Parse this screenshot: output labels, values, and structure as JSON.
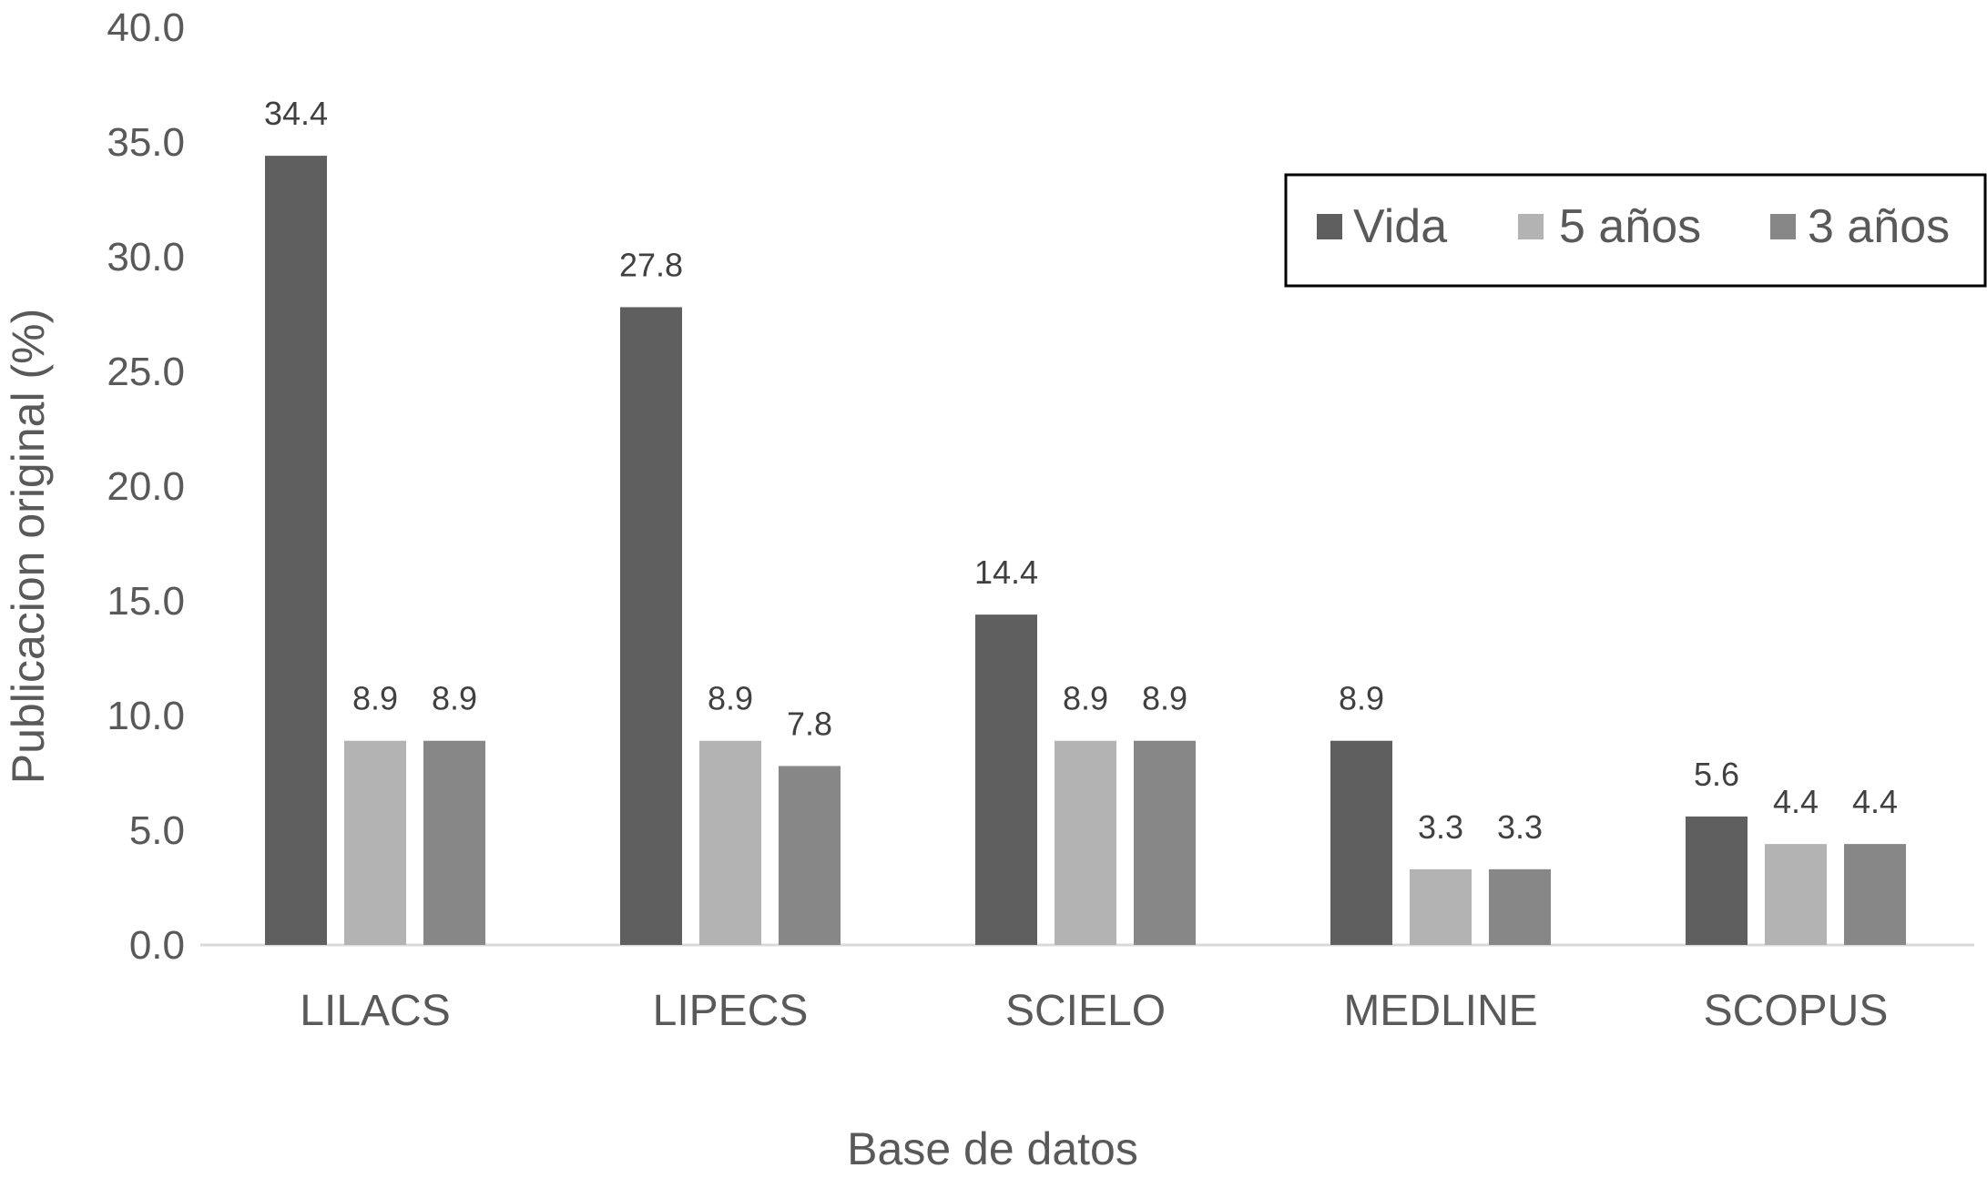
{
  "chart_data": {
    "type": "bar",
    "categories": [
      "LILACS",
      "LIPECS",
      "SCIELO",
      "MEDLINE",
      "SCOPUS"
    ],
    "series": [
      {
        "name": "Vida",
        "values": [
          34.4,
          27.8,
          14.4,
          8.9,
          5.6
        ],
        "color": "#5f5f5f"
      },
      {
        "name": "5 años",
        "values": [
          8.9,
          8.9,
          8.9,
          3.3,
          4.4
        ],
        "color": "#b3b3b3"
      },
      {
        "name": "3 años",
        "values": [
          8.9,
          7.8,
          8.9,
          3.3,
          4.4
        ],
        "color": "#878787"
      }
    ],
    "title": "",
    "xlabel": "Base de datos",
    "ylabel": "Publicacion original (%)",
    "ylim": [
      0,
      40
    ],
    "yticks": [
      "0.0",
      "5.0",
      "10.0",
      "15.0",
      "20.0",
      "25.0",
      "30.0",
      "35.0",
      "40.0"
    ],
    "grid": false,
    "legend": "top-right",
    "data_labels": true
  }
}
